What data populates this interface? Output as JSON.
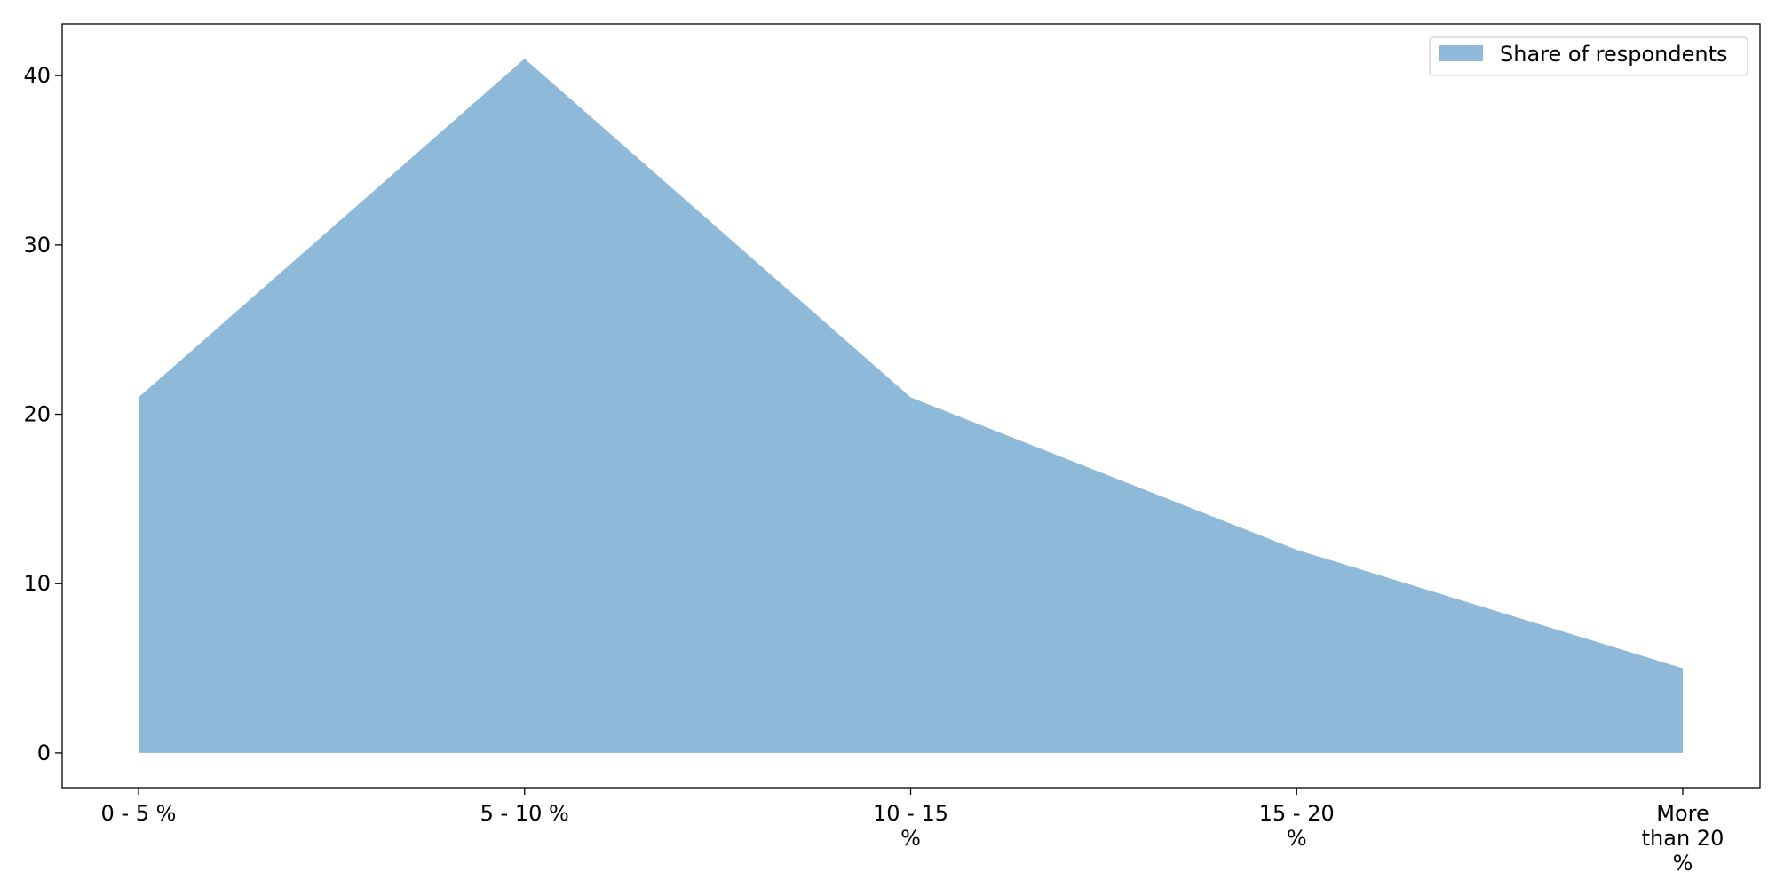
{
  "chart_data": {
    "type": "area",
    "categories": [
      "0 - 5 %",
      "5 - 10 %",
      "10 - 15 %",
      "15 - 20 %",
      "More than 20 %"
    ],
    "category_label_lines": [
      [
        "0 - 5 %"
      ],
      [
        "5 - 10 %"
      ],
      [
        "10 - 15",
        "%"
      ],
      [
        "15 - 20",
        "%"
      ],
      [
        "More",
        "than 20",
        "%"
      ]
    ],
    "series": [
      {
        "name": "Share of respondents",
        "values": [
          21,
          41,
          21,
          12,
          5
        ],
        "color": "#8fb9d9"
      }
    ],
    "yticks": [
      0,
      10,
      20,
      30,
      40
    ],
    "ylim": [
      -2.05,
      43.05
    ],
    "title": "",
    "xlabel": "",
    "ylabel": "",
    "grid": false,
    "legend_position": "top-right"
  }
}
